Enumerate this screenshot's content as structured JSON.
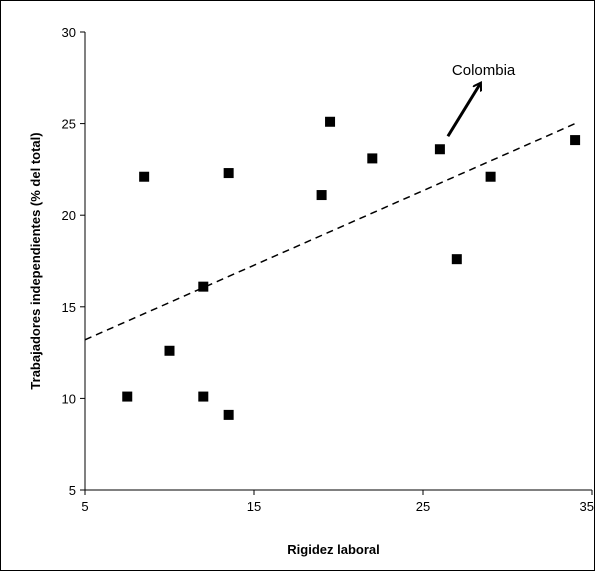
{
  "chart_data": {
    "type": "scatter",
    "title": "",
    "xlabel": "Rigidez laboral",
    "ylabel": "Trabajadores independientes (% del total)",
    "xlim": [
      5,
      35
    ],
    "ylim": [
      5,
      30
    ],
    "x_ticks": [
      5,
      15,
      25,
      35
    ],
    "y_ticks": [
      5,
      10,
      15,
      20,
      25,
      30
    ],
    "grid": false,
    "legend": "none",
    "marker": "square",
    "marker_color": "#000000",
    "points": [
      {
        "x": 7.5,
        "y": 10.1
      },
      {
        "x": 8.5,
        "y": 22.1
      },
      {
        "x": 10,
        "y": 12.6
      },
      {
        "x": 12,
        "y": 16.1
      },
      {
        "x": 12,
        "y": 10.1
      },
      {
        "x": 13.5,
        "y": 22.3
      },
      {
        "x": 13.5,
        "y": 9.1
      },
      {
        "x": 19,
        "y": 21.1
      },
      {
        "x": 19.5,
        "y": 25.1
      },
      {
        "x": 22,
        "y": 23.1
      },
      {
        "x": 26,
        "y": 23.6
      },
      {
        "x": 27,
        "y": 17.6
      },
      {
        "x": 29,
        "y": 22.1
      },
      {
        "x": 34,
        "y": 24.1
      }
    ],
    "trendline": {
      "style": "dashed",
      "from": {
        "x": 5,
        "y": 13.2
      },
      "to": {
        "x": 34,
        "y": 25
      }
    },
    "annotations": [
      {
        "text": "Colombia",
        "target": {
          "x": 26,
          "y": 23.6
        }
      }
    ]
  }
}
